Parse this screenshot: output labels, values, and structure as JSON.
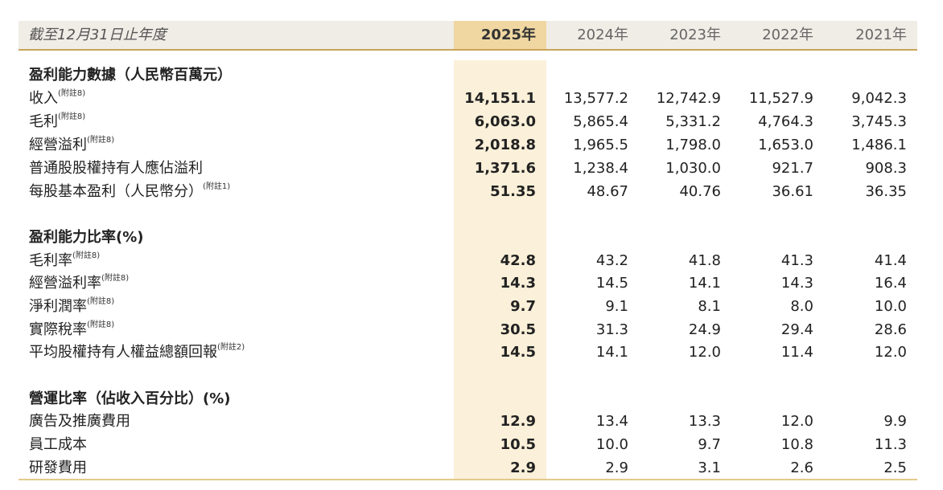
{
  "header": {
    "label": "截至12月31日止年度",
    "years": [
      "2025年",
      "2024年",
      "2023年",
      "2022年",
      "2021年"
    ]
  },
  "sections": [
    {
      "title": "盈利能力數據（人民幣百萬元）",
      "rows": [
        {
          "label": "收入",
          "note": "(附註8)",
          "values": [
            "14,151.1",
            "13,577.2",
            "12,742.9",
            "11,527.9",
            "9,042.3"
          ]
        },
        {
          "label": "毛利",
          "note": "(附註8)",
          "values": [
            "6,063.0",
            "5,865.4",
            "5,331.2",
            "4,764.3",
            "3,745.3"
          ]
        },
        {
          "label": "經營溢利",
          "note": "(附註8)",
          "values": [
            "2,018.8",
            "1,965.5",
            "1,798.0",
            "1,653.0",
            "1,486.1"
          ]
        },
        {
          "label": "普通股股權持有人應佔溢利",
          "note": "",
          "values": [
            "1,371.6",
            "1,238.4",
            "1,030.0",
            "921.7",
            "908.3"
          ]
        },
        {
          "label": "每股基本盈利（人民幣分）",
          "note": "(附註1)",
          "values": [
            "51.35",
            "48.67",
            "40.76",
            "36.61",
            "36.35"
          ]
        }
      ]
    },
    {
      "title": "盈利能力比率(%)",
      "rows": [
        {
          "label": "毛利率",
          "note": "(附註8)",
          "values": [
            "42.8",
            "43.2",
            "41.8",
            "41.3",
            "41.4"
          ]
        },
        {
          "label": "經營溢利率",
          "note": "(附註8)",
          "values": [
            "14.3",
            "14.5",
            "14.1",
            "14.3",
            "16.4"
          ]
        },
        {
          "label": "淨利潤率",
          "note": "(附註8)",
          "values": [
            "9.7",
            "9.1",
            "8.1",
            "8.0",
            "10.0"
          ]
        },
        {
          "label": "實際稅率",
          "note": "(附註8)",
          "values": [
            "30.5",
            "31.3",
            "24.9",
            "29.4",
            "28.6"
          ]
        },
        {
          "label": "平均股權持有人權益總額回報",
          "note": "(附註2)",
          "values": [
            "14.5",
            "14.1",
            "12.0",
            "11.4",
            "12.0"
          ]
        }
      ]
    },
    {
      "title": "營運比率（佔收入百分比）(%)",
      "rows": [
        {
          "label": "廣告及推廣費用",
          "note": "",
          "values": [
            "12.9",
            "13.4",
            "13.3",
            "12.0",
            "9.9"
          ]
        },
        {
          "label": "員工成本",
          "note": "",
          "values": [
            "10.5",
            "10.0",
            "9.7",
            "10.8",
            "11.3"
          ]
        },
        {
          "label": "研發費用",
          "note": "",
          "values": [
            "2.9",
            "2.9",
            "3.1",
            "2.6",
            "2.5"
          ]
        }
      ]
    }
  ]
}
